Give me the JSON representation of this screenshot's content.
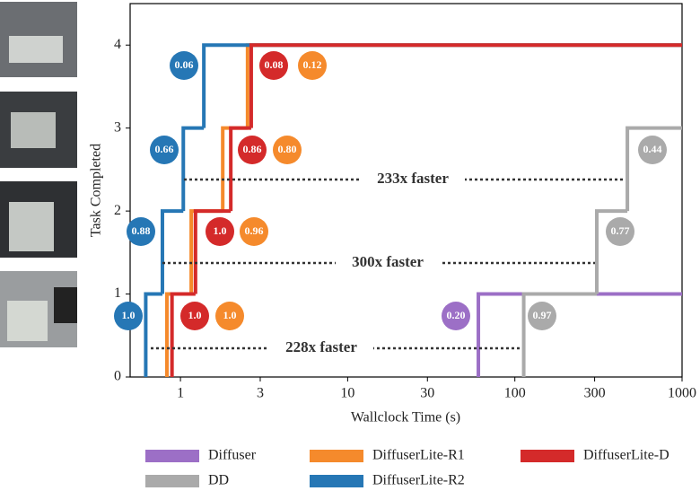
{
  "chart_data": {
    "type": "step",
    "xlabel": "Wallclock Time (s)",
    "ylabel": "Task Completed",
    "xscale": "log",
    "xlim": [
      0.5,
      1000
    ],
    "ylim": [
      0,
      4.5
    ],
    "xticks": [
      1,
      3,
      10,
      30,
      100,
      300,
      1000
    ],
    "yticks": [
      0,
      1,
      2,
      3,
      4
    ],
    "series": [
      {
        "name": "Diffuser",
        "color": "#9c6fc6",
        "x": [
          60.5,
          1000
        ],
        "values": [
          1,
          1
        ]
      },
      {
        "name": "DD",
        "color": "#aaaaaa",
        "x": [
          113,
          309,
          471,
          1000
        ],
        "values": [
          1,
          2,
          3,
          3
        ]
      },
      {
        "name": "DiffuserLite-R1",
        "color": "#f58a2c",
        "x": [
          0.83,
          1.16,
          1.79,
          2.52,
          1000
        ],
        "values": [
          1,
          2,
          3,
          4,
          4
        ]
      },
      {
        "name": "DiffuserLite-R2",
        "color": "#2677b5",
        "x": [
          0.62,
          0.78,
          1.04,
          1.38,
          1000
        ],
        "values": [
          1,
          2,
          3,
          4,
          4
        ]
      },
      {
        "name": "DiffuserLite-D",
        "color": "#d42a2a",
        "x": [
          0.89,
          1.23,
          2.0,
          2.65,
          1000
        ],
        "values": [
          1,
          2,
          3,
          4,
          4
        ]
      }
    ],
    "annotations": [
      {
        "text": "0.06",
        "color": "#2677b5"
      },
      {
        "text": "0.66",
        "color": "#2677b5"
      },
      {
        "text": "0.88",
        "color": "#2677b5"
      },
      {
        "text": "1.0",
        "color": "#2677b5"
      },
      {
        "text": "0.08",
        "color": "#d42a2a"
      },
      {
        "text": "0.86",
        "color": "#d42a2a"
      },
      {
        "text": "1.0",
        "color": "#d42a2a"
      },
      {
        "text": "1.0",
        "color": "#d42a2a"
      },
      {
        "text": "0.12",
        "color": "#f58a2c"
      },
      {
        "text": "0.80",
        "color": "#f58a2c"
      },
      {
        "text": "0.96",
        "color": "#f58a2c"
      },
      {
        "text": "1.0",
        "color": "#f58a2c"
      },
      {
        "text": "0.20",
        "color": "#9c6fc6"
      },
      {
        "text": "0.97",
        "color": "#aaaaaa"
      },
      {
        "text": "0.77",
        "color": "#aaaaaa"
      },
      {
        "text": "0.44",
        "color": "#aaaaaa"
      }
    ],
    "speedups": [
      "233x faster",
      "300x faster",
      "228x faster"
    ]
  }
}
